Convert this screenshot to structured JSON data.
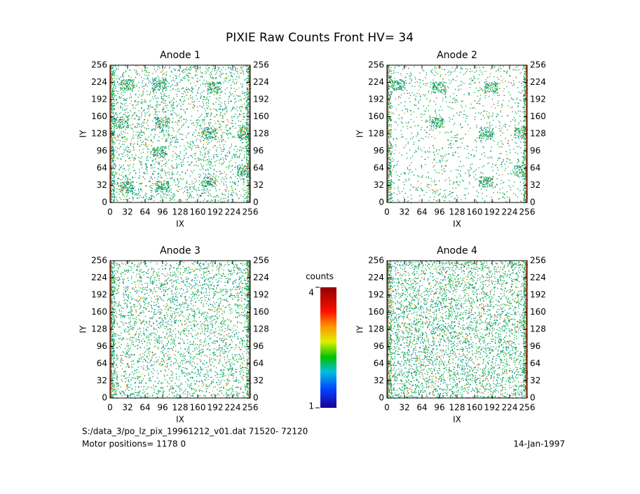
{
  "page": {
    "title": "PIXIE Raw Counts Front HV= 34",
    "file": "S:/data_3/po_lz_pix_19961212_v01.dat   71520- 72120",
    "motor": "Motor positions= 1178 0",
    "date": "14-Jan-1997"
  },
  "chart_data": [
    {
      "type": "heatmap",
      "title": "Anode 1",
      "xlabel": "IX",
      "ylabel": "IY",
      "xlim": [
        0,
        256
      ],
      "ylim": [
        0,
        256
      ],
      "y2lim": [
        0,
        256
      ],
      "xticks": [
        0,
        32,
        64,
        96,
        128,
        160,
        192,
        224,
        256
      ],
      "yticks": [
        0,
        32,
        64,
        96,
        128,
        160,
        192,
        224,
        256
      ],
      "y2ticks": [
        0,
        32,
        64,
        96,
        128,
        160,
        192,
        224,
        256
      ]
    },
    {
      "type": "heatmap",
      "title": "Anode 2",
      "xlabel": "IX",
      "ylabel": "IY",
      "xlim": [
        0,
        256
      ],
      "ylim": [
        0,
        256
      ],
      "y2lim": [
        0,
        256
      ],
      "xticks": [
        0,
        32,
        64,
        96,
        128,
        160,
        192,
        224,
        256
      ],
      "yticks": [
        0,
        32,
        64,
        96,
        128,
        160,
        192,
        224,
        256
      ],
      "y2ticks": [
        0,
        32,
        64,
        96,
        128,
        160,
        192,
        224,
        256
      ]
    },
    {
      "type": "heatmap",
      "title": "Anode 3",
      "xlabel": "IX",
      "ylabel": "IY",
      "xlim": [
        0,
        256
      ],
      "ylim": [
        0,
        256
      ],
      "y2lim": [
        0,
        256
      ],
      "xticks": [
        0,
        32,
        64,
        96,
        128,
        160,
        192,
        224,
        256
      ],
      "yticks": [
        0,
        32,
        64,
        96,
        128,
        160,
        192,
        224,
        256
      ],
      "y2ticks": [
        0,
        32,
        64,
        96,
        128,
        160,
        192,
        224,
        256
      ]
    },
    {
      "type": "heatmap",
      "title": "Anode 4",
      "xlabel": "IX",
      "ylabel": "IY",
      "xlim": [
        0,
        256
      ],
      "ylim": [
        0,
        256
      ],
      "y2lim": [
        0,
        256
      ],
      "xticks": [
        0,
        32,
        64,
        96,
        128,
        160,
        192,
        224,
        256
      ],
      "yticks": [
        0,
        32,
        64,
        96,
        128,
        160,
        192,
        224,
        256
      ],
      "y2ticks": [
        0,
        32,
        64,
        96,
        128,
        160,
        192,
        224,
        256
      ]
    }
  ],
  "colorbar": {
    "label": "counts",
    "lim": [
      1,
      4
    ],
    "ticks": [
      1,
      4
    ]
  }
}
